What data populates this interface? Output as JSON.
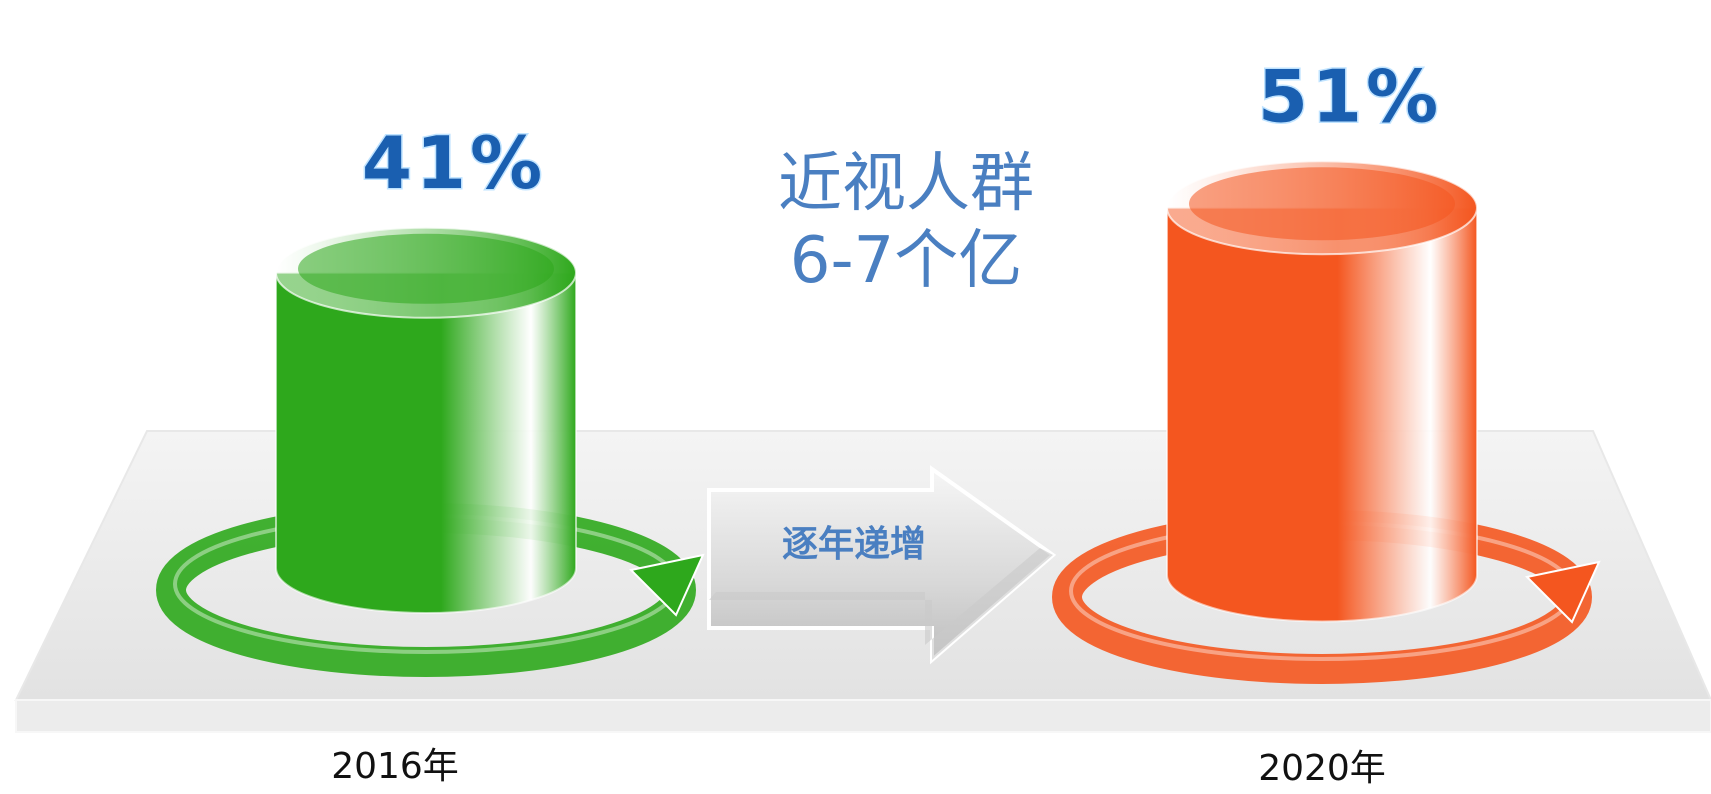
{
  "chart_data": {
    "type": "bar",
    "categories": [
      "2016年",
      "2020年"
    ],
    "values": [
      41,
      51
    ],
    "value_labels": [
      "41%",
      "51%"
    ],
    "colors": [
      "#2ea81c",
      "#f4561f"
    ],
    "annotations": [
      "近视人群",
      "6-7个亿",
      "逐年递增"
    ]
  }
}
